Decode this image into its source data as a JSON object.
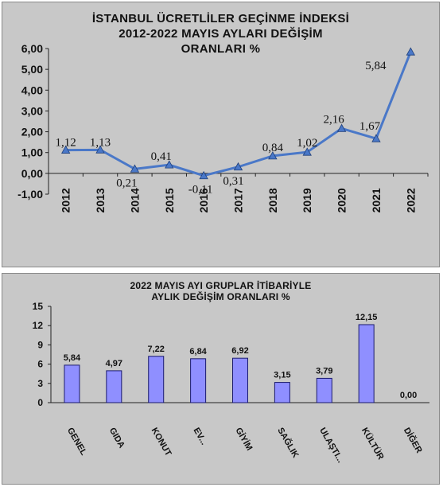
{
  "chart_data": [
    {
      "type": "line",
      "title_lines": [
        "İSTANBUL ÜCRETLİLER GEÇİNME İNDEKSİ",
        "2012-2022 MAYIS AYLARI DEĞİŞİM",
        "ORANLARI %"
      ],
      "x": [
        "2012",
        "2013",
        "2014",
        "2015",
        "2016",
        "2017",
        "2018",
        "2019",
        "2020",
        "2021",
        "2022"
      ],
      "data_labels": [
        "1,12",
        "1,13",
        "0,21",
        "0,41",
        "-0,11",
        "0,31",
        "0,84",
        "1,02",
        "2,16",
        "1,67",
        "5,84"
      ],
      "series": [
        {
          "values": [
            1.12,
            1.13,
            0.21,
            0.41,
            -0.11,
            0.31,
            0.84,
            1.02,
            2.16,
            1.67,
            5.84
          ]
        }
      ],
      "ylim": [
        -1,
        6
      ],
      "y_ticks": [
        "-1,00",
        "0,00",
        "1,00",
        "2,00",
        "3,00",
        "4,00",
        "5,00",
        "6,00"
      ],
      "grid": false,
      "legend": "none",
      "colors": {
        "line": "#4a78c8",
        "marker": "#4a78c8",
        "background": "#c8c8c8"
      }
    },
    {
      "type": "bar",
      "title_lines": [
        "2022 MAYIS AYI GRUPLAR İTİBARİYLE",
        "AYLIK DEĞİŞİM ORANLARI %"
      ],
      "categories": [
        "GENEL",
        "GIDA",
        "KONUT",
        "EV...",
        "GİYİM",
        "SAĞLIK",
        "ULAŞTI...",
        "KÜLTÜR",
        "DİĞER"
      ],
      "data_labels": [
        "5,84",
        "4,97",
        "7,22",
        "6,84",
        "6,92",
        "3,15",
        "3,79",
        "12,15",
        "0,00"
      ],
      "series": [
        {
          "values": [
            5.84,
            4.97,
            7.22,
            6.84,
            6.92,
            3.15,
            3.79,
            12.15,
            0.0
          ]
        }
      ],
      "ylim": [
        0,
        15
      ],
      "y_ticks": [
        "0",
        "3",
        "6",
        "9",
        "12",
        "15"
      ],
      "grid": false,
      "legend": "none",
      "colors": {
        "bar": "#8f8fff",
        "bar_border": "#1a1a6e",
        "background": "#c8c8c8"
      }
    }
  ]
}
